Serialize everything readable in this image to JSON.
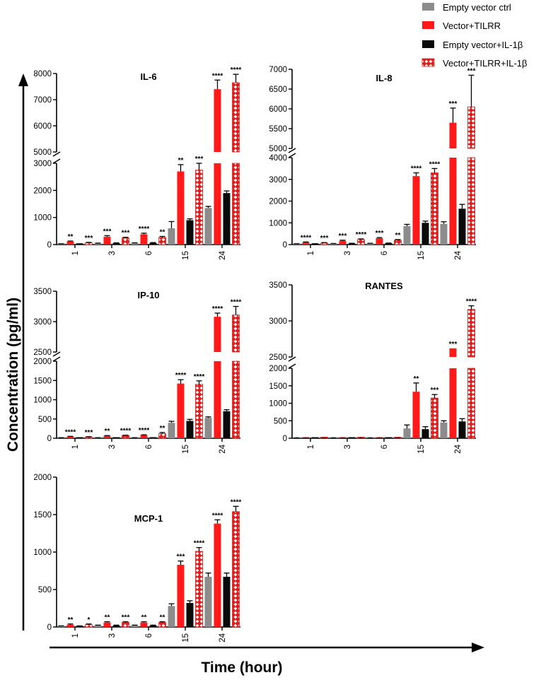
{
  "figure": {
    "y_axis_label": "Concentration (pg/ml)",
    "x_axis_label": "Time (hour)"
  },
  "colors": {
    "empty_vector_ctrl": "#8c8c8c",
    "vector_tilrr": "#ff1a1a",
    "empty_vector_il1b": "#0a0a0a",
    "vector_tilrr_il1b": "#e01e1e",
    "axis": "#000000"
  },
  "legend": [
    {
      "name": "Empty vector ctrl",
      "style": "gray"
    },
    {
      "name": "Vector+TILRR",
      "style": "red"
    },
    {
      "name": "Empty vector+IL-1β",
      "style": "black"
    },
    {
      "name": "Vector+TILRR+IL-1β",
      "style": "pattern"
    }
  ],
  "chart_data": [
    {
      "type": "bar",
      "title": "IL-6",
      "categories": [
        "1",
        "3",
        "6",
        "15",
        "24"
      ],
      "axis_break": {
        "lower": [
          0,
          3000
        ],
        "upper": [
          5000,
          8000
        ]
      },
      "lower_ticks": [
        0,
        1000,
        2000,
        3000
      ],
      "upper_ticks": [
        5000,
        6000,
        7000,
        8000
      ],
      "series": [
        {
          "name": "Empty vector ctrl",
          "values": [
            20,
            40,
            50,
            600,
            1350
          ],
          "errors": [
            10,
            15,
            15,
            250,
            60
          ]
        },
        {
          "name": "Vector+TILRR",
          "values": [
            110,
            290,
            380,
            2700,
            7400
          ],
          "errors": [
            20,
            40,
            40,
            250,
            350
          ]
        },
        {
          "name": "Empty vector+IL-1β",
          "values": [
            20,
            50,
            60,
            900,
            1900
          ],
          "errors": [
            10,
            15,
            15,
            50,
            80
          ]
        },
        {
          "name": "Vector+TILRR+IL-1β",
          "values": [
            60,
            240,
            260,
            2750,
            7650
          ],
          "errors": [
            20,
            30,
            40,
            250,
            320
          ]
        }
      ],
      "significance": [
        [
          "**",
          "***",
          "****",
          "**",
          "****"
        ],
        [
          "***",
          "***",
          "**",
          "***",
          "****"
        ]
      ]
    },
    {
      "type": "bar",
      "title": "IL-8",
      "categories": [
        "1",
        "3",
        "6",
        "15",
        "24"
      ],
      "axis_break": {
        "lower": [
          0,
          4000
        ],
        "upper": [
          5000,
          7000
        ]
      },
      "lower_ticks": [
        0,
        1000,
        2000,
        3000,
        4000
      ],
      "upper_ticks": [
        5000,
        5500,
        6000,
        6500,
        7000
      ],
      "series": [
        {
          "name": "Empty vector ctrl",
          "values": [
            30,
            40,
            50,
            850,
            950
          ],
          "errors": [
            10,
            10,
            10,
            80,
            100
          ]
        },
        {
          "name": "Vector+TILRR",
          "values": [
            100,
            170,
            290,
            3150,
            5650
          ],
          "errors": [
            20,
            30,
            30,
            150,
            370
          ]
        },
        {
          "name": "Empty vector+IL-1β",
          "values": [
            30,
            50,
            60,
            1000,
            1650
          ],
          "errors": [
            10,
            10,
            10,
            80,
            200
          ]
        },
        {
          "name": "Vector+TILRR+IL-1β",
          "values": [
            70,
            230,
            200,
            3300,
            6050
          ],
          "errors": [
            20,
            30,
            30,
            200,
            800
          ]
        }
      ],
      "significance": [
        [
          "****",
          "***",
          "***",
          "****",
          "***"
        ],
        [
          "***",
          "****",
          "**",
          "****",
          "***"
        ]
      ]
    },
    {
      "type": "bar",
      "title": "IP-10",
      "categories": [
        "1",
        "3",
        "6",
        "15",
        "24"
      ],
      "axis_break": {
        "lower": [
          0,
          2000
        ],
        "upper": [
          2500,
          3500
        ]
      },
      "lower_ticks": [
        0,
        500,
        1000,
        1500,
        2000
      ],
      "upper_ticks": [
        2500,
        3000,
        3500
      ],
      "series": [
        {
          "name": "Empty vector ctrl",
          "values": [
            10,
            10,
            10,
            400,
            530
          ],
          "errors": [
            5,
            5,
            5,
            40,
            25
          ]
        },
        {
          "name": "Vector+TILRR",
          "values": [
            40,
            60,
            80,
            1420,
            3080
          ],
          "errors": [
            10,
            10,
            10,
            100,
            60
          ]
        },
        {
          "name": "Empty vector+IL-1β",
          "values": [
            10,
            10,
            10,
            450,
            700
          ],
          "errors": [
            5,
            5,
            5,
            40,
            40
          ]
        },
        {
          "name": "Vector+TILRR+IL-1β",
          "values": [
            30,
            70,
            120,
            1400,
            3110
          ],
          "errors": [
            10,
            10,
            30,
            90,
            140
          ]
        }
      ],
      "significance": [
        [
          "****",
          "**",
          "****",
          "****",
          "****"
        ],
        [
          "***",
          "****",
          "**",
          "****",
          "****"
        ]
      ]
    },
    {
      "type": "bar",
      "title": "RANTES",
      "categories": [
        "1",
        "3",
        "6",
        "15",
        "24"
      ],
      "axis_break": {
        "lower": [
          0,
          2000
        ],
        "upper": [
          2500,
          3500
        ]
      },
      "lower_ticks": [
        0,
        500,
        1000,
        1500,
        2000
      ],
      "upper_ticks": [
        2500,
        3000,
        3500
      ],
      "series": [
        {
          "name": "Empty vector ctrl",
          "values": [
            5,
            5,
            5,
            280,
            450
          ],
          "errors": [
            2,
            2,
            2,
            100,
            50
          ]
        },
        {
          "name": "Vector+TILRR",
          "values": [
            5,
            5,
            5,
            1330,
            2620
          ],
          "errors": [
            2,
            2,
            2,
            250,
            0
          ]
        },
        {
          "name": "Empty vector+IL-1β",
          "values": [
            5,
            5,
            5,
            260,
            480
          ],
          "errors": [
            2,
            2,
            2,
            70,
            80
          ]
        },
        {
          "name": "Vector+TILRR+IL-1β",
          "values": [
            5,
            5,
            5,
            1150,
            3160
          ],
          "errors": [
            2,
            2,
            2,
            100,
            50
          ]
        }
      ],
      "significance": [
        [
          "",
          "",
          "",
          "**",
          "***"
        ],
        [
          "",
          "",
          "",
          "***",
          "****"
        ]
      ]
    },
    {
      "type": "bar",
      "title": "MCP-1",
      "categories": [
        "1",
        "3",
        "6",
        "15",
        "24"
      ],
      "ylim": [
        0,
        2000
      ],
      "ticks": [
        0,
        500,
        1000,
        1500,
        2000
      ],
      "series": [
        {
          "name": "Empty vector ctrl",
          "values": [
            10,
            20,
            20,
            280,
            670
          ],
          "errors": [
            5,
            5,
            5,
            30,
            50
          ]
        },
        {
          "name": "Vector+TILRR",
          "values": [
            30,
            60,
            60,
            830,
            1380
          ],
          "errors": [
            10,
            10,
            10,
            50,
            50
          ]
        },
        {
          "name": "Empty vector+IL-1β",
          "values": [
            10,
            20,
            20,
            320,
            670
          ],
          "errors": [
            5,
            5,
            5,
            30,
            50
          ]
        },
        {
          "name": "Vector+TILRR+IL-1β",
          "values": [
            30,
            60,
            60,
            1010,
            1540
          ],
          "errors": [
            10,
            10,
            10,
            50,
            70
          ]
        }
      ],
      "significance": [
        [
          "**",
          "**",
          "**",
          "***",
          "****"
        ],
        [
          "*",
          "***",
          "**",
          "****",
          "****"
        ]
      ]
    }
  ]
}
